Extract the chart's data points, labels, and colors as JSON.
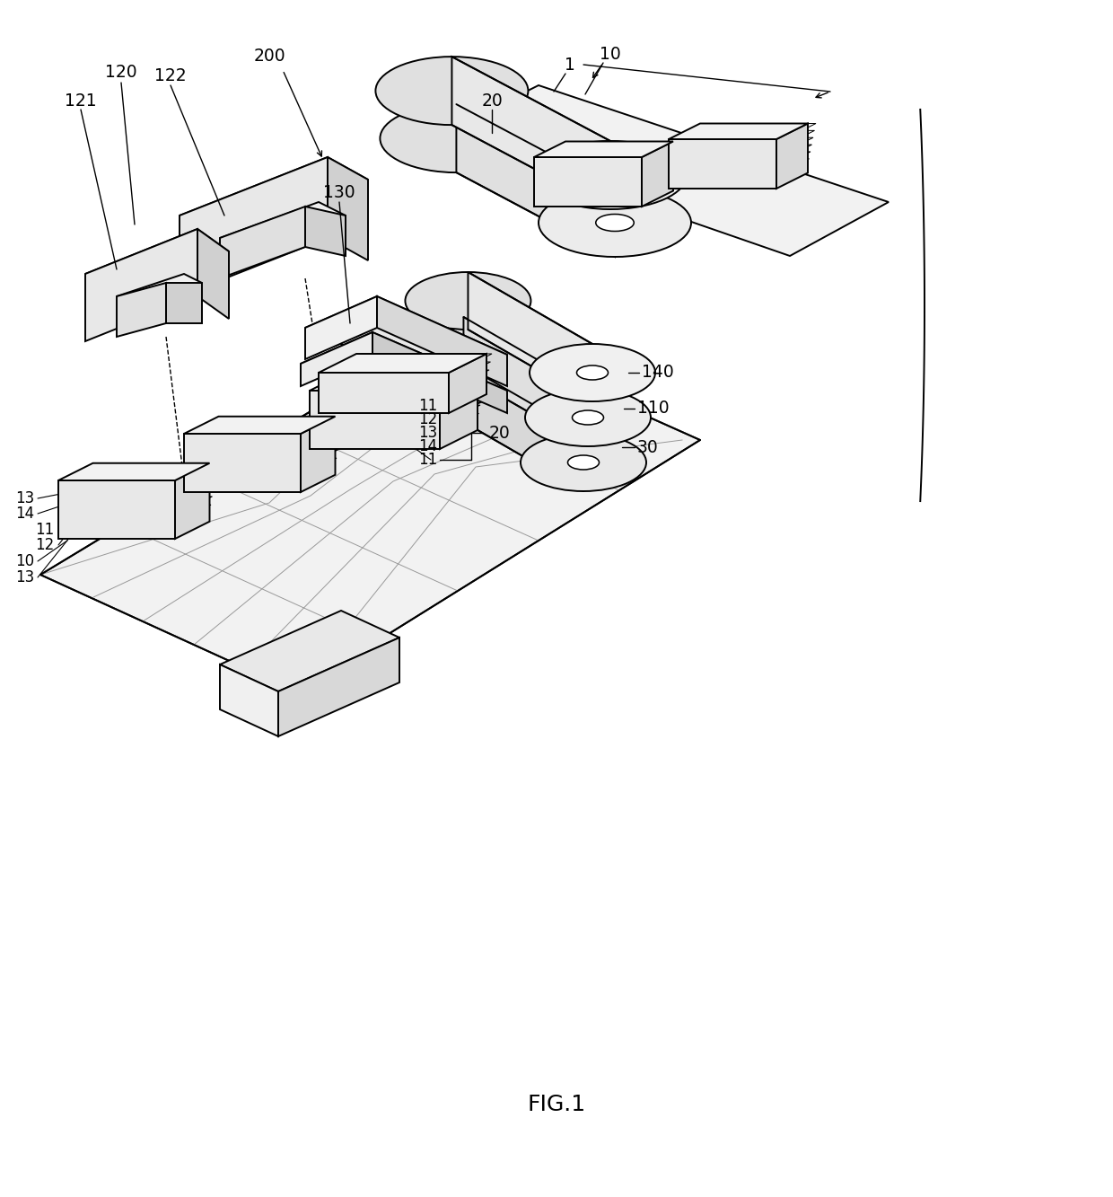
{
  "bg_color": "#ffffff",
  "line_color": "#000000",
  "lw": 1.4,
  "fig_label": "FIG.1",
  "annotation_fontsize": 13.5,
  "fig_fontsize": 18
}
